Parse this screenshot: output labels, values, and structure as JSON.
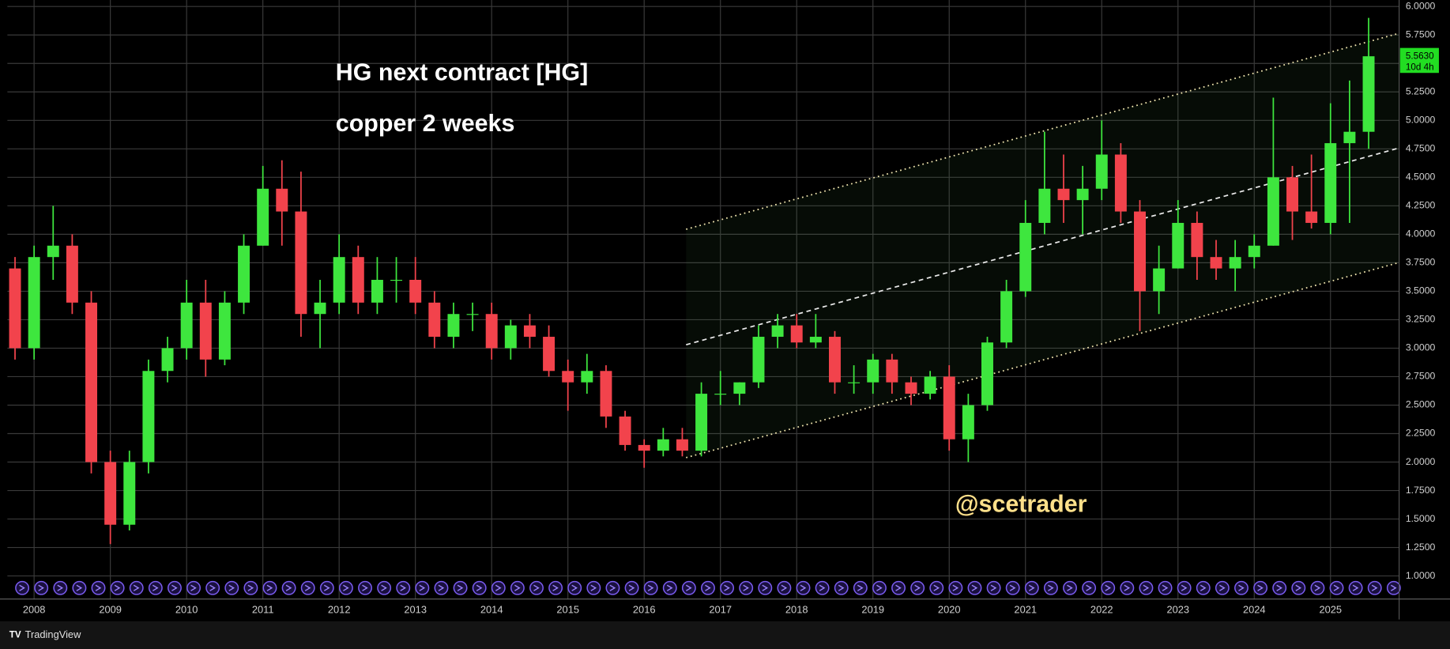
{
  "chart_data": {
    "type": "candlestick",
    "title": "HG next contract [HG]",
    "subtitle": "copper 2 weeks",
    "watermark": "@scetrader",
    "brand": "TradingView",
    "up_color": "#3ee63e",
    "down_color": "#f2434c",
    "grid": true,
    "x": [
      2007.75,
      2008.0,
      2008.25,
      2008.5,
      2008.75,
      2009.0,
      2009.25,
      2009.5,
      2009.75,
      2010.0,
      2010.25,
      2010.5,
      2010.75,
      2011.0,
      2011.25,
      2011.5,
      2011.75,
      2012.0,
      2012.25,
      2012.5,
      2012.75,
      2013.0,
      2013.25,
      2013.5,
      2013.75,
      2014.0,
      2014.25,
      2014.5,
      2014.75,
      2015.0,
      2015.25,
      2015.5,
      2015.75,
      2016.0,
      2016.25,
      2016.5,
      2016.75,
      2017.0,
      2017.25,
      2017.5,
      2017.75,
      2018.0,
      2018.25,
      2018.5,
      2018.75,
      2019.0,
      2019.25,
      2019.5,
      2019.75,
      2020.0,
      2020.25,
      2020.5,
      2020.75,
      2021.0,
      2021.25,
      2021.5,
      2021.75,
      2022.0,
      2022.25,
      2022.5,
      2022.75,
      2023.0,
      2023.25,
      2023.5,
      2023.75,
      2024.0,
      2024.25,
      2024.5,
      2024.75,
      2025.0,
      2025.25,
      2025.5
    ],
    "open": [
      3.7,
      3.0,
      3.8,
      3.9,
      3.4,
      2.0,
      1.45,
      2.0,
      2.8,
      3.0,
      3.4,
      2.9,
      3.4,
      3.9,
      4.4,
      4.2,
      3.3,
      3.4,
      3.8,
      3.4,
      3.6,
      3.6,
      3.4,
      3.1,
      3.3,
      3.3,
      3.0,
      3.2,
      3.1,
      2.8,
      2.7,
      2.8,
      2.4,
      2.15,
      2.1,
      2.2,
      2.1,
      2.6,
      2.6,
      2.7,
      3.1,
      3.2,
      3.05,
      3.1,
      2.7,
      2.7,
      2.9,
      2.7,
      2.6,
      2.75,
      2.2,
      2.5,
      3.05,
      3.5,
      4.1,
      4.4,
      4.3,
      4.4,
      4.7,
      4.2,
      3.5,
      3.7,
      4.1,
      3.8,
      3.7,
      3.8,
      3.9,
      4.5,
      4.2,
      4.1,
      4.8,
      4.9
    ],
    "high": [
      3.8,
      3.9,
      4.25,
      4.0,
      3.5,
      2.1,
      2.1,
      2.9,
      3.1,
      3.6,
      3.6,
      3.5,
      4.0,
      4.6,
      4.65,
      4.55,
      3.6,
      4.0,
      3.9,
      3.8,
      3.8,
      3.8,
      3.5,
      3.4,
      3.4,
      3.4,
      3.25,
      3.3,
      3.2,
      2.9,
      2.95,
      2.85,
      2.45,
      2.2,
      2.3,
      2.3,
      2.7,
      2.8,
      2.7,
      3.2,
      3.3,
      3.3,
      3.3,
      3.15,
      2.85,
      2.95,
      2.95,
      2.75,
      2.8,
      2.85,
      2.6,
      3.1,
      3.6,
      4.3,
      4.9,
      4.7,
      4.6,
      5.0,
      4.8,
      4.3,
      3.9,
      4.3,
      4.2,
      3.95,
      3.95,
      4.0,
      5.2,
      4.6,
      4.7,
      5.15,
      5.35,
      5.9
    ],
    "low": [
      2.9,
      2.9,
      3.6,
      3.3,
      1.9,
      1.28,
      1.4,
      1.9,
      2.7,
      2.9,
      2.75,
      2.85,
      3.3,
      3.9,
      3.9,
      3.1,
      3.0,
      3.3,
      3.3,
      3.3,
      3.4,
      3.3,
      3.0,
      3.0,
      3.15,
      2.9,
      2.9,
      3.0,
      2.75,
      2.45,
      2.6,
      2.3,
      2.1,
      1.95,
      2.05,
      2.05,
      2.05,
      2.5,
      2.5,
      2.65,
      3.0,
      3.0,
      3.0,
      2.6,
      2.6,
      2.6,
      2.6,
      2.5,
      2.55,
      2.1,
      2.0,
      2.45,
      3.0,
      3.45,
      4.0,
      4.1,
      4.0,
      4.3,
      4.1,
      3.15,
      3.3,
      3.7,
      3.6,
      3.6,
      3.5,
      3.7,
      3.9,
      3.95,
      4.05,
      4.0,
      4.1,
      4.75
    ],
    "close": [
      3.0,
      3.8,
      3.9,
      3.4,
      2.0,
      1.45,
      2.0,
      2.8,
      3.0,
      3.4,
      2.9,
      3.4,
      3.9,
      4.4,
      4.2,
      3.3,
      3.4,
      3.8,
      3.4,
      3.6,
      3.6,
      3.4,
      3.1,
      3.3,
      3.3,
      3.0,
      3.2,
      3.1,
      2.8,
      2.7,
      2.8,
      2.4,
      2.15,
      2.1,
      2.2,
      2.1,
      2.6,
      2.6,
      2.7,
      3.1,
      3.2,
      3.05,
      3.1,
      2.7,
      2.7,
      2.9,
      2.7,
      2.6,
      2.75,
      2.2,
      2.5,
      3.05,
      3.5,
      4.1,
      4.4,
      4.3,
      4.4,
      4.7,
      4.2,
      3.5,
      3.7,
      4.1,
      3.8,
      3.7,
      3.8,
      3.9,
      4.5,
      4.2,
      4.1,
      4.8,
      4.9,
      5.563
    ],
    "last_price": {
      "value": 5.563,
      "label": "5.5630"
    },
    "countdown": "10d 4h",
    "trend_lines": [
      {
        "style": "dotted",
        "color": "#f3e7b0",
        "x": [
          2016.55,
          2025.9
        ],
        "y": [
          4.044,
          5.765
        ]
      },
      {
        "style": "dashed",
        "color": "#e8e8e8",
        "x": [
          2016.55,
          2025.9
        ],
        "y": [
          3.03,
          4.758
        ]
      },
      {
        "style": "dotted",
        "color": "#f3e7b0",
        "x": [
          2016.55,
          2025.9
        ],
        "y": [
          2.039,
          3.752
        ]
      }
    ],
    "xlim": [
      2007.65,
      2025.9
    ],
    "xticks": [
      2008,
      2009,
      2010,
      2011,
      2012,
      2013,
      2014,
      2015,
      2016,
      2017,
      2018,
      2019,
      2020,
      2021,
      2022,
      2023,
      2024,
      2025
    ],
    "ylim": [
      0.797,
      6.057
    ],
    "yticks": [
      {
        "value": 1,
        "label": "1.0000"
      },
      {
        "value": 1.25,
        "label": "1.2500"
      },
      {
        "value": 1.5,
        "label": "1.5000"
      },
      {
        "value": 1.75,
        "label": "1.7500"
      },
      {
        "value": 2,
        "label": "2.0000"
      },
      {
        "value": 2.25,
        "label": "2.2500"
      },
      {
        "value": 2.5,
        "label": "2.5000"
      },
      {
        "value": 2.75,
        "label": "2.7500"
      },
      {
        "value": 3,
        "label": "3.0000"
      },
      {
        "value": 3.25,
        "label": "3.2500"
      },
      {
        "value": 3.5,
        "label": "3.5000"
      },
      {
        "value": 3.75,
        "label": "3.7500"
      },
      {
        "value": 4,
        "label": "4.0000"
      },
      {
        "value": 4.25,
        "label": "4.2500"
      },
      {
        "value": 4.5,
        "label": "4.5000"
      },
      {
        "value": 4.75,
        "label": "4.7500"
      },
      {
        "value": 5,
        "label": "5.0000"
      },
      {
        "value": 5.25,
        "label": "5.2500"
      },
      {
        "value": 5.5,
        "label": "5.5000"
      },
      {
        "value": 5.75,
        "label": "5.7500"
      },
      {
        "value": 6,
        "label": "6.0000"
      }
    ]
  }
}
